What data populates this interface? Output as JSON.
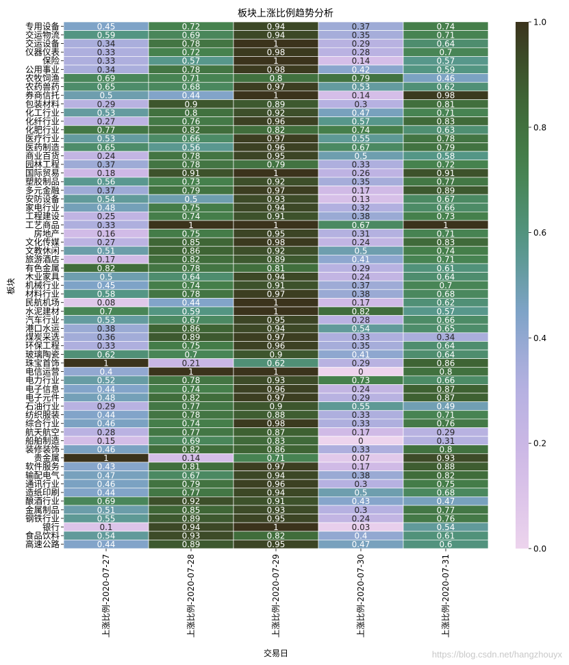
{
  "chart_data": {
    "type": "heatmap",
    "title": "板块上涨比例趋势分析",
    "xlabel": "交易日",
    "ylabel": "板块",
    "columns": [
      "上涨比例-2020-07-27",
      "上涨比例-2020-07-28",
      "上涨比例-2020-07-29",
      "上涨比例-2020-07-30",
      "上涨比例-2020-07-31"
    ],
    "rows": [
      "专用设备",
      "交运物流",
      "交运设备",
      "仪器仪表",
      "保险",
      "公用事业",
      "农牧饲渔",
      "农药兽药",
      "券商信托",
      "包装材料",
      "化工行业",
      "化纤行业",
      "化肥行业",
      "医疗行业",
      "医药制造",
      "商业百货",
      "园林工程",
      "国际贸易",
      "塑胶制品",
      "多元金融",
      "安防设备",
      "家电行业",
      "工程建设",
      "工艺商品",
      "房地产",
      "文化传媒",
      "文教休闲",
      "旅游酒店",
      "有色金属",
      "木业家具",
      "机械行业",
      "材料行业",
      "民航机场",
      "水泥建材",
      "汽车行业",
      "港口水运",
      "煤炭采选",
      "环保工程",
      "玻璃陶瓷",
      "珠宝首饰",
      "电信运营",
      "电力行业",
      "电子信息",
      "电子元件",
      "石油行业",
      "纺织服装",
      "综合行业",
      "航天航空",
      "船舶制造",
      "装修装饰",
      "贵金属",
      "软件服务",
      "输配电气",
      "通讯行业",
      "造纸印刷",
      "酿酒行业",
      "金属制品",
      "钢铁行业",
      "银行",
      "食品饮料",
      "高速公路"
    ],
    "values": [
      [
        0.45,
        0.72,
        0.94,
        0.37,
        0.74
      ],
      [
        0.59,
        0.69,
        0.94,
        0.35,
        0.71
      ],
      [
        0.34,
        0.78,
        1,
        0.29,
        0.64
      ],
      [
        0.33,
        0.72,
        0.98,
        0.28,
        0.7
      ],
      [
        0.33,
        0.57,
        1,
        0.14,
        0.57
      ],
      [
        0.34,
        0.78,
        0.98,
        0.42,
        0.59
      ],
      [
        0.69,
        0.71,
        0.8,
        0.79,
        0.46
      ],
      [
        0.65,
        0.68,
        0.97,
        0.53,
        0.62
      ],
      [
        0.5,
        0.44,
        1,
        0.14,
        0.98
      ],
      [
        0.29,
        0.9,
        0.89,
        0.3,
        0.81
      ],
      [
        0.53,
        0.8,
        0.92,
        0.47,
        0.71
      ],
      [
        0.27,
        0.76,
        0.96,
        0.57,
        0.83
      ],
      [
        0.77,
        0.82,
        0.82,
        0.74,
        0.63
      ],
      [
        0.53,
        0.66,
        0.97,
        0.55,
        0.78
      ],
      [
        0.65,
        0.56,
        0.96,
        0.67,
        0.79
      ],
      [
        0.24,
        0.78,
        0.95,
        0.5,
        0.58
      ],
      [
        0.37,
        0.78,
        0.79,
        0.33,
        0.72
      ],
      [
        0.18,
        0.91,
        1,
        0.26,
        0.91
      ],
      [
        0.56,
        0.73,
        0.92,
        0.35,
        0.77
      ],
      [
        0.37,
        0.79,
        0.97,
        0.17,
        0.89
      ],
      [
        0.54,
        0.5,
        0.93,
        0.13,
        0.67
      ],
      [
        0.48,
        0.75,
        0.94,
        0.32,
        0.66
      ],
      [
        0.25,
        0.74,
        0.91,
        0.38,
        0.73
      ],
      [
        0.33,
        1,
        1,
        0.67,
        1
      ],
      [
        0.16,
        0.75,
        0.95,
        0.31,
        0.71
      ],
      [
        0.27,
        0.85,
        0.98,
        0.24,
        0.83
      ],
      [
        0.51,
        0.86,
        0.92,
        0.5,
        0.74
      ],
      [
        0.17,
        0.82,
        0.89,
        0.41,
        0.71
      ],
      [
        0.82,
        0.78,
        0.81,
        0.29,
        0.61
      ],
      [
        0.5,
        0.64,
        0.94,
        0.24,
        0.64
      ],
      [
        0.45,
        0.74,
        0.91,
        0.37,
        0.7
      ],
      [
        0.58,
        0.78,
        0.97,
        0.38,
        0.68
      ],
      [
        0.08,
        0.44,
        1,
        0.17,
        0.62
      ],
      [
        0.7,
        0.59,
        1,
        0.82,
        0.57
      ],
      [
        0.53,
        0.67,
        0.95,
        0.28,
        0.66
      ],
      [
        0.38,
        0.86,
        0.94,
        0.54,
        0.65
      ],
      [
        0.36,
        0.89,
        0.97,
        0.33,
        0.34
      ],
      [
        0.33,
        0.75,
        0.96,
        0.35,
        0.64
      ],
      [
        0.62,
        0.7,
        0.9,
        0.41,
        0.64
      ],
      [
        1,
        0.21,
        0.62,
        0.29,
        0.86
      ],
      [
        0.4,
        1,
        1,
        0,
        0.8
      ],
      [
        0.52,
        0.78,
        0.93,
        0.73,
        0.66
      ],
      [
        0.44,
        0.74,
        0.96,
        0.24,
        0.87
      ],
      [
        0.48,
        0.82,
        0.97,
        0.29,
        0.87
      ],
      [
        0.29,
        0.77,
        0.9,
        0.55,
        0.49
      ],
      [
        0.44,
        0.78,
        0.88,
        0.33,
        0.71
      ],
      [
        0.46,
        0.74,
        0.98,
        0.33,
        0.76
      ],
      [
        0.28,
        0.77,
        0.87,
        0.17,
        0.29
      ],
      [
        0.15,
        0.69,
        0.83,
        0,
        0.31
      ],
      [
        0.46,
        0.82,
        0.86,
        0.33,
        0.8
      ],
      [
        1,
        0.14,
        0.71,
        0.07,
        0.93
      ],
      [
        0.43,
        0.81,
        0.97,
        0.17,
        0.88
      ],
      [
        0.47,
        0.67,
        0.94,
        0.38,
        0.82
      ],
      [
        0.46,
        0.79,
        0.96,
        0.3,
        0.75
      ],
      [
        0.44,
        0.77,
        0.94,
        0.5,
        0.68
      ],
      [
        0.69,
        0.92,
        0.91,
        0.43,
        0.47
      ],
      [
        0.51,
        0.85,
        0.93,
        0.3,
        0.77
      ],
      [
        0.55,
        0.89,
        0.95,
        0.24,
        0.76
      ],
      [
        0.1,
        0.94,
        1,
        0.03,
        0.54
      ],
      [
        0.54,
        0.93,
        0.82,
        0.4,
        0.61
      ],
      [
        0.44,
        0.89,
        0.95,
        0.47,
        0.6
      ]
    ],
    "colorbar": {
      "min": 0,
      "max": 1,
      "ticks": [
        0.0,
        0.2,
        0.4,
        0.6,
        0.8,
        1.0
      ],
      "colormap": "cubehelix_r"
    }
  },
  "watermark": "https://blog.csdn.net/hangzhouyx"
}
